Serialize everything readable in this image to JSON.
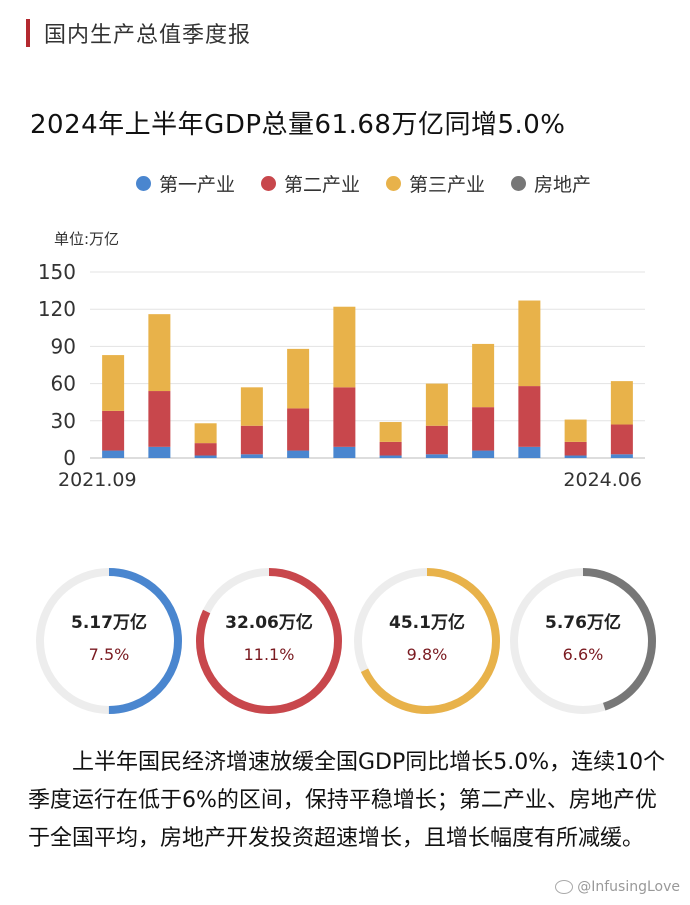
{
  "header": {
    "title": "国内生产总值季度报"
  },
  "headline": "2024年上半年GDP总量61.68万亿同增5.0%",
  "legend": [
    {
      "label": "第一产业",
      "color": "#4a86cf"
    },
    {
      "label": "第二产业",
      "color": "#c8474c"
    },
    {
      "label": "第三产业",
      "color": "#e8b24a"
    },
    {
      "label": "房地产",
      "color": "#777777"
    }
  ],
  "chart_data": {
    "type": "bar",
    "stacked": true,
    "unit_label": "单位:万亿",
    "ylim": [
      0,
      150
    ],
    "yticks": [
      0,
      30,
      60,
      90,
      120,
      150
    ],
    "grid": true,
    "x_start_label": "2021.09",
    "x_end_label": "2024.06",
    "categories": [
      "",
      "",
      "",
      "",
      "",
      "",
      "",
      "",
      "",
      "",
      "",
      ""
    ],
    "series": [
      {
        "name": "第一产业",
        "color": "#4a86cf",
        "values": [
          6,
          9,
          2,
          3,
          6,
          9,
          2,
          3,
          6,
          9,
          2,
          3
        ]
      },
      {
        "name": "第二产业",
        "color": "#c8474c",
        "values": [
          32,
          45,
          10,
          23,
          34,
          48,
          11,
          23,
          35,
          49,
          11,
          24
        ]
      },
      {
        "name": "第三产业",
        "color": "#e8b24a",
        "values": [
          45,
          62,
          16,
          31,
          48,
          65,
          16,
          34,
          51,
          69,
          18,
          35
        ]
      }
    ]
  },
  "donuts": [
    {
      "value": "5.17万亿",
      "rate": "7.5%",
      "color": "#4a86cf",
      "fraction": 0.5
    },
    {
      "value": "32.06万亿",
      "rate": "11.1%",
      "color": "#c8474c",
      "fraction": 0.82
    },
    {
      "value": "45.1万亿",
      "rate": "9.8%",
      "color": "#e8b24a",
      "fraction": 0.68
    },
    {
      "value": "5.76万亿",
      "rate": "6.6%",
      "color": "#777777",
      "fraction": 0.45
    }
  ],
  "summary": {
    "text": "上半年国民经济增速放缓全国GDP同比增长5.0%，连续10个季度运行在低于6%的区间，保持平稳增长；第二产业、房地产优于全国平均，房地产开发投资超速增长，且增长幅度有所减缓。"
  },
  "watermark": "@InfusingLove"
}
